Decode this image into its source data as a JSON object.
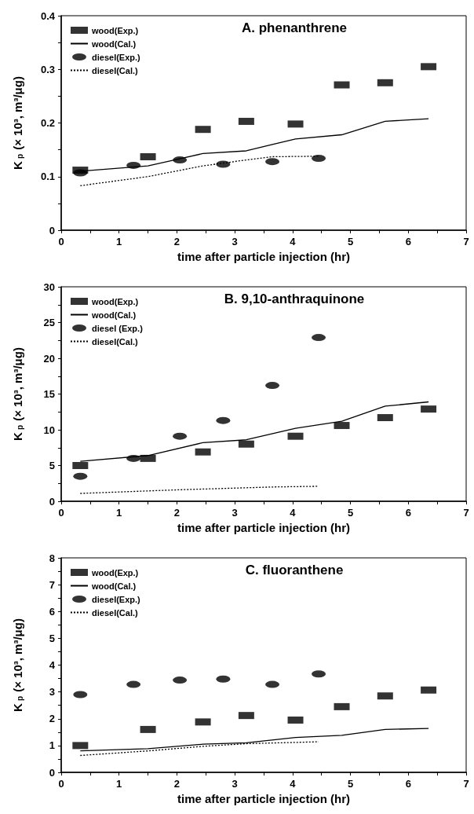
{
  "chart_data": [
    {
      "type": "scatter",
      "title": "A. phenanthrene",
      "xlabel": "time after particle injection (hr)",
      "ylabel": "K$_{p}$ (× 10³, m³/μg)",
      "xlim": [
        0,
        7
      ],
      "xticks": [
        0,
        {
          "value": 0.5,
          "label": null
        },
        1,
        {
          "value": 1.5,
          "label": null
        },
        2,
        {
          "value": 2.5,
          "label": null
        },
        3,
        {
          "value": 3.5,
          "label": null
        },
        4,
        {
          "value": 4.5,
          "label": null
        },
        5,
        {
          "value": 5.5,
          "label": null
        },
        6,
        {
          "value": 6.5,
          "label": null
        },
        7
      ],
      "ylim": [
        0,
        0.4
      ],
      "yticks": [
        0,
        {
          "value": 0.05,
          "label": null
        },
        0.1,
        {
          "value": 0.15,
          "label": null
        },
        0.2,
        {
          "value": 0.25,
          "label": null
        },
        0.3,
        {
          "value": 0.35,
          "label": null
        },
        0.4
      ],
      "legend": "top left",
      "grid": false,
      "series": [
        {
          "name": "wood(Exp.)",
          "marker": "square",
          "color": "#000000",
          "x": [
            0.33,
            1.5,
            2.45,
            3.2,
            4.05,
            4.85,
            5.6,
            6.35
          ],
          "values": [
            0.112,
            0.137,
            0.188,
            0.203,
            0.198,
            0.271,
            0.275,
            0.305
          ]
        },
        {
          "name": "wood(Cal.)",
          "type": "line",
          "line_style": "solid",
          "color": "#000000",
          "x": [
            0.33,
            1.5,
            2.0,
            2.45,
            3.2,
            3.65,
            4.05,
            4.85,
            5.6,
            6.35
          ],
          "values": [
            0.11,
            0.12,
            0.132,
            0.143,
            0.148,
            0.16,
            0.17,
            0.178,
            0.203,
            0.208
          ]
        },
        {
          "name": "diesel(Exp.)",
          "marker": "circle",
          "color": "#000000",
          "x": [
            0.33,
            1.25,
            2.05,
            2.8,
            3.65,
            4.45
          ],
          "values": [
            0.107,
            0.121,
            0.131,
            0.123,
            0.128,
            0.134
          ]
        },
        {
          "name": "diesel(Cal.)",
          "type": "line",
          "line_style": "dotted",
          "color": "#000000",
          "x": [
            0.33,
            1.5,
            2.45,
            3.2,
            3.65,
            4.45
          ],
          "values": [
            0.083,
            0.1,
            0.12,
            0.131,
            0.137,
            0.138
          ]
        }
      ]
    },
    {
      "type": "scatter",
      "title": "B. 9,10-anthraquinone",
      "xlabel": "time after particle injection (hr)",
      "ylabel": "K$_{p}$ (× 10³, m³/μg)",
      "xlim": [
        0,
        7
      ],
      "xticks": [
        0,
        {
          "value": 0.5,
          "label": null
        },
        1,
        {
          "value": 1.5,
          "label": null
        },
        2,
        {
          "value": 2.5,
          "label": null
        },
        3,
        {
          "value": 3.5,
          "label": null
        },
        4,
        {
          "value": 4.5,
          "label": null
        },
        5,
        {
          "value": 5.5,
          "label": null
        },
        6,
        {
          "value": 6.5,
          "label": null
        },
        7
      ],
      "ylim": [
        0,
        30
      ],
      "yticks": [
        0,
        {
          "value": 2.5,
          "label": null
        },
        5,
        {
          "value": 7.5,
          "label": null
        },
        10,
        {
          "value": 12.5,
          "label": null
        },
        15,
        {
          "value": 17.5,
          "label": null
        },
        20,
        {
          "value": 22.5,
          "label": null
        },
        25,
        {
          "value": 27.5,
          "label": null
        },
        30
      ],
      "legend": "top left",
      "grid": false,
      "series": [
        {
          "name": "wood(Exp.)",
          "marker": "square",
          "color": "#000000",
          "x": [
            0.33,
            1.5,
            2.45,
            3.2,
            4.05,
            4.85,
            5.6,
            6.35
          ],
          "values": [
            5.0,
            6.0,
            6.9,
            8.0,
            9.1,
            10.6,
            11.7,
            12.9
          ]
        },
        {
          "name": "wood(Cal.)",
          "type": "line",
          "line_style": "solid",
          "color": "#000000",
          "x": [
            0.33,
            1.5,
            2.45,
            3.2,
            4.05,
            4.85,
            5.6,
            6.35
          ],
          "values": [
            5.6,
            6.4,
            8.2,
            8.6,
            10.2,
            11.2,
            13.3,
            13.9
          ]
        },
        {
          "name": "diesel (Exp.)",
          "marker": "circle",
          "color": "#000000",
          "x": [
            0.33,
            1.25,
            2.05,
            2.8,
            3.65,
            4.45
          ],
          "values": [
            3.5,
            6.0,
            9.1,
            11.3,
            16.2,
            22.9
          ]
        },
        {
          "name": "diesel(Cal.)",
          "type": "line",
          "line_style": "dotted",
          "color": "#000000",
          "x": [
            0.33,
            2.0,
            3.65,
            4.45
          ],
          "values": [
            1.1,
            1.6,
            2.0,
            2.1
          ]
        }
      ]
    },
    {
      "type": "scatter",
      "title": "C. fluoranthene",
      "xlabel": "time after particle injection (hr)",
      "ylabel": "K$_{p}$ (× 10³, m³/μg)",
      "xlim": [
        0,
        7
      ],
      "xticks": [
        0,
        {
          "value": 0.5,
          "label": null
        },
        1,
        {
          "value": 1.5,
          "label": null
        },
        2,
        {
          "value": 2.5,
          "label": null
        },
        3,
        {
          "value": 3.5,
          "label": null
        },
        4,
        {
          "value": 4.5,
          "label": null
        },
        5,
        {
          "value": 5.5,
          "label": null
        },
        6,
        {
          "value": 6.5,
          "label": null
        },
        7
      ],
      "ylim": [
        0,
        8
      ],
      "yticks": [
        0,
        {
          "value": 0.5,
          "label": null
        },
        1,
        {
          "value": 1.5,
          "label": null
        },
        2,
        {
          "value": 2.5,
          "label": null
        },
        3,
        {
          "value": 3.5,
          "label": null
        },
        4,
        {
          "value": 4.5,
          "label": null
        },
        5,
        {
          "value": 5.5,
          "label": null
        },
        6,
        {
          "value": 6.5,
          "label": null
        },
        7,
        {
          "value": 7.5,
          "label": null
        },
        8
      ],
      "legend": "top left",
      "grid": false,
      "series": [
        {
          "name": "wood(Exp.)",
          "marker": "square",
          "color": "#000000",
          "x": [
            0.33,
            1.5,
            2.45,
            3.2,
            4.05,
            4.85,
            5.6,
            6.35
          ],
          "values": [
            1.0,
            1.6,
            1.88,
            2.12,
            1.95,
            2.45,
            2.85,
            3.07
          ]
        },
        {
          "name": "wood(Cal.)",
          "type": "line",
          "line_style": "solid",
          "color": "#000000",
          "x": [
            0.33,
            1.5,
            2.45,
            3.2,
            4.05,
            4.85,
            5.6,
            6.35
          ],
          "values": [
            0.8,
            0.88,
            1.05,
            1.1,
            1.3,
            1.38,
            1.6,
            1.64
          ]
        },
        {
          "name": "diesel(Exp.)",
          "marker": "circle",
          "color": "#000000",
          "x": [
            0.33,
            1.25,
            2.05,
            2.8,
            3.65,
            4.45
          ],
          "values": [
            2.9,
            3.28,
            3.44,
            3.48,
            3.28,
            3.67
          ]
        },
        {
          "name": "diesel(Cal.)",
          "type": "line",
          "line_style": "dotted",
          "color": "#000000",
          "x": [
            0.33,
            1.5,
            2.45,
            3.2,
            4.45
          ],
          "values": [
            0.63,
            0.8,
            0.97,
            1.07,
            1.14
          ]
        }
      ]
    }
  ]
}
